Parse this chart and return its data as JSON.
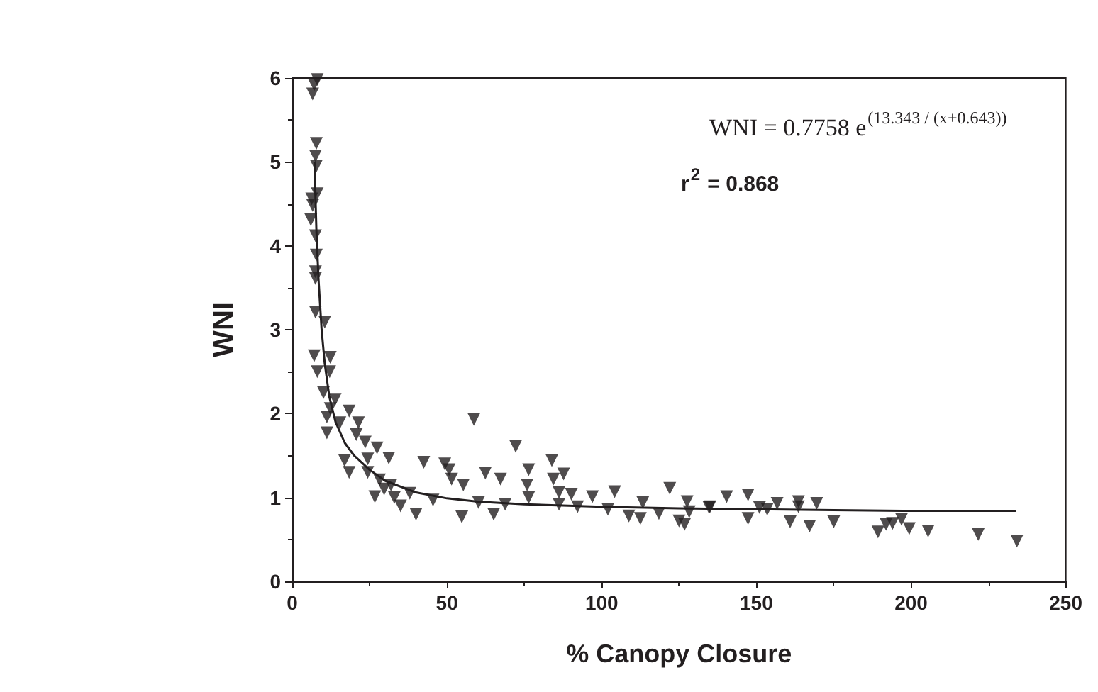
{
  "chart_data": {
    "type": "scatter",
    "xlabel": "% Canopy Closure",
    "ylabel": "WNI",
    "xlim": [
      0,
      250
    ],
    "xticks": [
      0,
      50,
      100,
      150,
      200,
      250
    ],
    "ylim": [
      0,
      6
    ],
    "yticks": [
      0,
      1,
      2,
      3,
      4,
      5,
      6
    ],
    "grid": false,
    "annotations": [
      "WNI = 0.7758 e$^{(13.343 / (x+0.643))}$",
      "r$^{2}$ = 0.868"
    ],
    "series": [
      {
        "color": "#231f20",
        "marker": "triangle",
        "x": [
          8.1,
          7.1,
          6.6,
          7.8,
          7.5,
          7.8,
          8.1,
          6.3,
          6.6,
          6.0,
          7.5,
          7.8,
          7.5,
          7.5,
          7.5,
          10.5,
          7.1,
          12.3,
          8.1,
          12.1,
          10.1,
          13.9,
          12.3,
          11.2,
          15.4,
          11.2,
          18.4,
          21.4,
          20.7,
          23.6,
          27.4,
          16.9,
          18.4,
          24.4,
          31.2,
          24.4,
          28.2,
          29.7,
          26.7,
          31.9,
          33,
          35,
          38,
          40,
          58.7,
          72.2,
          83.9,
          76.4,
          87.7,
          84.4,
          62.4,
          67.3,
          49.3,
          42.5,
          50.7,
          51.5,
          55.3,
          75.9,
          76.4,
          60.2,
          68.8,
          54.8,
          65.1,
          86.2,
          90.2,
          86.2,
          92.2,
          97,
          104.2,
          102,
          108.8,
          112.5,
          113.3,
          118.5,
          122,
          125,
          126.8,
          127.6,
          128.3,
          134.7,
          140.4,
          45.5,
          135,
          147.3,
          147.3,
          151,
          153.5,
          156.7,
          163.6,
          163.6,
          169.5,
          160.9,
          167.2,
          175,
          189.3,
          191.9,
          194,
          196.9,
          199.4,
          205.5,
          221.7,
          234.2
        ],
        "values": [
          5.98,
          5.92,
          5.81,
          5.22,
          5.07,
          4.95,
          4.62,
          4.56,
          4.48,
          4.31,
          4.12,
          3.89,
          3.69,
          3.61,
          3.21,
          3.09,
          2.69,
          2.67,
          2.5,
          2.5,
          2.25,
          2.17,
          2.06,
          1.96,
          1.89,
          1.77,
          2.03,
          1.89,
          1.75,
          1.66,
          1.59,
          1.44,
          1.3,
          1.46,
          1.47,
          1.3,
          1.21,
          1.1,
          1.01,
          1.15,
          1.0,
          0.9,
          1.05,
          0.8,
          1.93,
          1.61,
          1.44,
          1.33,
          1.28,
          1.22,
          1.29,
          1.22,
          1.4,
          1.42,
          1.33,
          1.22,
          1.15,
          1.15,
          1.0,
          0.94,
          0.92,
          0.77,
          0.8,
          1.06,
          1.04,
          0.92,
          0.89,
          1.01,
          1.07,
          0.86,
          0.78,
          0.75,
          0.94,
          0.81,
          1.11,
          0.72,
          0.68,
          0.95,
          0.83,
          0.88,
          1.01,
          0.97,
          0.89,
          1.03,
          0.75,
          0.88,
          0.86,
          0.93,
          0.95,
          0.89,
          0.93,
          0.71,
          0.66,
          0.71,
          0.59,
          0.68,
          0.69,
          0.74,
          0.63,
          0.6,
          0.56,
          0.48
        ]
      },
      {
        "type": "line",
        "color": "#231f20",
        "marker": "none",
        "line_style": "solid",
        "x": [
          7.2,
          7.8,
          8.5,
          9.5,
          10.5,
          12,
          14,
          17,
          20,
          25,
          30,
          40,
          50,
          60,
          75,
          100,
          125,
          150,
          175,
          200,
          234
        ],
        "values": [
          5.0,
          4.2,
          3.6,
          3.0,
          2.6,
          2.2,
          1.9,
          1.65,
          1.5,
          1.33,
          1.2,
          1.06,
          0.99,
          0.95,
          0.92,
          0.89,
          0.87,
          0.86,
          0.85,
          0.84,
          0.84
        ]
      }
    ]
  }
}
